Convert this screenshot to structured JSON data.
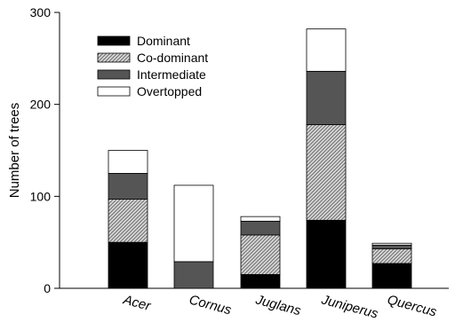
{
  "chart_data": {
    "type": "bar",
    "stacked": true,
    "title": "",
    "xlabel": "",
    "ylabel": "Number of trees",
    "ylim": [
      0,
      300
    ],
    "yticks": [
      "0",
      "100",
      "200",
      "300"
    ],
    "categories": [
      "Acer",
      "Cornus",
      "Juglans",
      "Juniperus",
      "Quercus"
    ],
    "series": [
      {
        "name": "Dominant",
        "values": [
          50,
          0,
          15,
          74,
          27
        ],
        "color": "#000000",
        "pattern": "solid"
      },
      {
        "name": "Co-dominant",
        "values": [
          47,
          0,
          43,
          104,
          16
        ],
        "color": "#9a9a9a",
        "pattern": "hatched"
      },
      {
        "name": "Intermediate",
        "values": [
          28,
          29,
          15,
          58,
          4
        ],
        "color": "#555555",
        "pattern": "solid"
      },
      {
        "name": "Overtopped",
        "values": [
          25,
          83,
          5,
          46,
          2
        ],
        "color": "#ffffff",
        "pattern": "solid"
      }
    ],
    "legend_position": "top-left",
    "grid": false
  }
}
